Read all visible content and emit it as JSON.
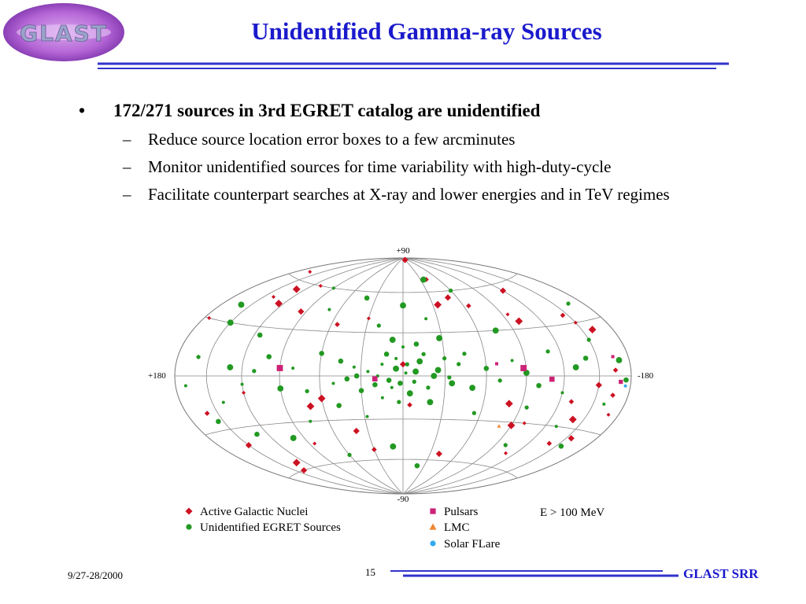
{
  "header": {
    "logo_text": "GLAST",
    "title": "Unidentified Gamma-ray Sources"
  },
  "bullets": {
    "main": {
      "marker": "•",
      "text": "172/271 sources in 3rd EGRET catalog are unidentified"
    },
    "sub_items": [
      {
        "marker": "–",
        "text": "Reduce source location error boxes to a few arcminutes"
      },
      {
        "marker": "–",
        "text": "Monitor unidentified sources for time variability with high-duty-cycle"
      },
      {
        "marker": "–",
        "text": "Facilitate counterpart searches at X-ray and lower energies and in TeV regimes"
      }
    ]
  },
  "sky_map": {
    "type": "scatter",
    "projection": "aitoff",
    "axis_labels": {
      "top": "+90",
      "bottom": "-90",
      "left": "+180",
      "right": "-180"
    },
    "energy_label": "E > 100 MeV",
    "legend": [
      {
        "key": "agn",
        "name": "Active Galactic Nuclei",
        "shape": "diamond",
        "color": "#cc1122"
      },
      {
        "key": "unid",
        "name": "Unidentified EGRET Sources",
        "shape": "circle",
        "color": "#229922"
      },
      {
        "key": "pulsar",
        "name": "Pulsars",
        "shape": "square",
        "color": "#cc2277"
      },
      {
        "key": "lmc",
        "name": "LMC",
        "shape": "triangle",
        "color": "#ee8833"
      },
      {
        "key": "solar",
        "name": "Solar FLare",
        "shape": "circle",
        "color": "#33aaee"
      }
    ],
    "series": {
      "agn": [
        [
          165,
          65
        ],
        [
          130,
          55
        ],
        [
          -30,
          88
        ],
        [
          -40,
          70
        ],
        [
          140,
          48
        ],
        [
          125,
          45
        ],
        [
          95,
          42
        ],
        [
          55,
          35
        ],
        [
          30,
          40
        ],
        [
          -35,
          50
        ],
        [
          -50,
          55
        ],
        [
          -65,
          48
        ],
        [
          -95,
          40
        ],
        [
          -100,
          35
        ],
        [
          -120,
          55
        ],
        [
          -145,
          35
        ],
        [
          -150,
          30
        ],
        [
          -160,
          25
        ],
        [
          -150,
          -5
        ],
        [
          -165,
          -10
        ],
        [
          -170,
          -20
        ],
        [
          -140,
          -25
        ],
        [
          -155,
          -35
        ],
        [
          -140,
          -40
        ],
        [
          -100,
          -30
        ],
        [
          -90,
          -32
        ],
        [
          -40,
          -55
        ],
        [
          30,
          -52
        ],
        [
          85,
          -45
        ],
        [
          130,
          -55
        ],
        [
          140,
          -60
        ],
        [
          160,
          -20
        ],
        [
          120,
          -10
        ],
        [
          70,
          -20
        ],
        [
          40,
          -38
        ],
        [
          -5,
          -20
        ],
        [
          110,
          60
        ],
        [
          -80,
          -18
        ],
        [
          150,
          -40
        ],
        [
          -130,
          -15
        ],
        [
          -110,
          -50
        ],
        [
          60,
          -15
        ],
        [
          0,
          8
        ],
        [
          -165,
          3
        ],
        [
          175,
          30
        ]
      ],
      "unid": [
        [
          -2,
          2
        ],
        [
          5,
          5
        ],
        [
          10,
          -3
        ],
        [
          -8,
          -4
        ],
        [
          15,
          8
        ],
        [
          -12,
          10
        ],
        [
          20,
          -6
        ],
        [
          -18,
          -8
        ],
        [
          25,
          3
        ],
        [
          -25,
          4
        ],
        [
          30,
          -10
        ],
        [
          -30,
          12
        ],
        [
          35,
          6
        ],
        [
          -35,
          -5
        ],
        [
          40,
          -2
        ],
        [
          -40,
          8
        ],
        [
          5,
          12
        ],
        [
          -5,
          -12
        ],
        [
          12,
          15
        ],
        [
          -15,
          15
        ],
        [
          0,
          20
        ],
        [
          8,
          25
        ],
        [
          -10,
          22
        ],
        [
          3,
          -18
        ],
        [
          15,
          -15
        ],
        [
          -20,
          -18
        ],
        [
          45,
          10
        ],
        [
          -45,
          15
        ],
        [
          50,
          -5
        ],
        [
          -50,
          -8
        ],
        [
          60,
          15
        ],
        [
          70,
          -10
        ],
        [
          80,
          5
        ],
        [
          90,
          -8
        ],
        [
          100,
          12
        ],
        [
          110,
          3
        ],
        [
          120,
          -5
        ],
        [
          130,
          5
        ],
        [
          -60,
          5
        ],
        [
          -70,
          -3
        ],
        [
          -80,
          10
        ],
        [
          -90,
          2
        ],
        [
          -100,
          -6
        ],
        [
          -110,
          15
        ],
        [
          -120,
          -10
        ],
        [
          -130,
          5
        ],
        [
          -140,
          10
        ],
        [
          -150,
          20
        ],
        [
          -160,
          -15
        ],
        [
          150,
          30
        ],
        [
          155,
          -25
        ],
        [
          160,
          10
        ],
        [
          170,
          -5
        ],
        [
          -170,
          8
        ],
        [
          -175,
          -2
        ],
        [
          20,
          35
        ],
        [
          -20,
          40
        ],
        [
          0,
          50
        ],
        [
          40,
          55
        ],
        [
          -60,
          60
        ],
        [
          70,
          45
        ],
        [
          100,
          -40
        ],
        [
          130,
          -35
        ],
        [
          -100,
          -45
        ],
        [
          -130,
          -30
        ],
        [
          10,
          -50
        ],
        [
          -20,
          -65
        ],
        [
          60,
          -55
        ],
        [
          90,
          60
        ],
        [
          -75,
          30
        ],
        [
          115,
          25
        ],
        [
          -95,
          -20
        ],
        [
          28,
          -28
        ],
        [
          -28,
          26
        ],
        [
          48,
          -20
        ],
        [
          -55,
          -25
        ],
        [
          140,
          -15
        ],
        [
          160,
          40
        ],
        [
          -155,
          -40
        ],
        [
          -165,
          40
        ],
        [
          75,
          -30
        ],
        [
          -35,
          70
        ],
        [
          2,
          -5
        ],
        [
          -3,
          8
        ],
        [
          18,
          0
        ],
        [
          -22,
          0
        ],
        [
          33,
          0
        ],
        [
          -33,
          -1
        ],
        [
          8,
          -8
        ],
        [
          -9,
          3
        ]
      ],
      "pulsar": [
        [
          -165,
          10
        ],
        [
          -88,
          5
        ],
        [
          -110,
          -2
        ],
        [
          -170,
          -3
        ],
        [
          -68,
          8
        ],
        [
          90,
          5
        ],
        [
          20,
          -2
        ]
      ],
      "lmc": [
        [
          -80,
          -33
        ]
      ],
      "solar": [
        [
          -175,
          -5
        ]
      ]
    }
  },
  "footer": {
    "date": "9/27-28/2000",
    "page": "15",
    "org": "GLAST SRR"
  },
  "colors": {
    "title": "#1a1acc",
    "rule": "#3333cc",
    "logo_bg": "#b566d6",
    "logo_text": "#9aa3c8"
  }
}
